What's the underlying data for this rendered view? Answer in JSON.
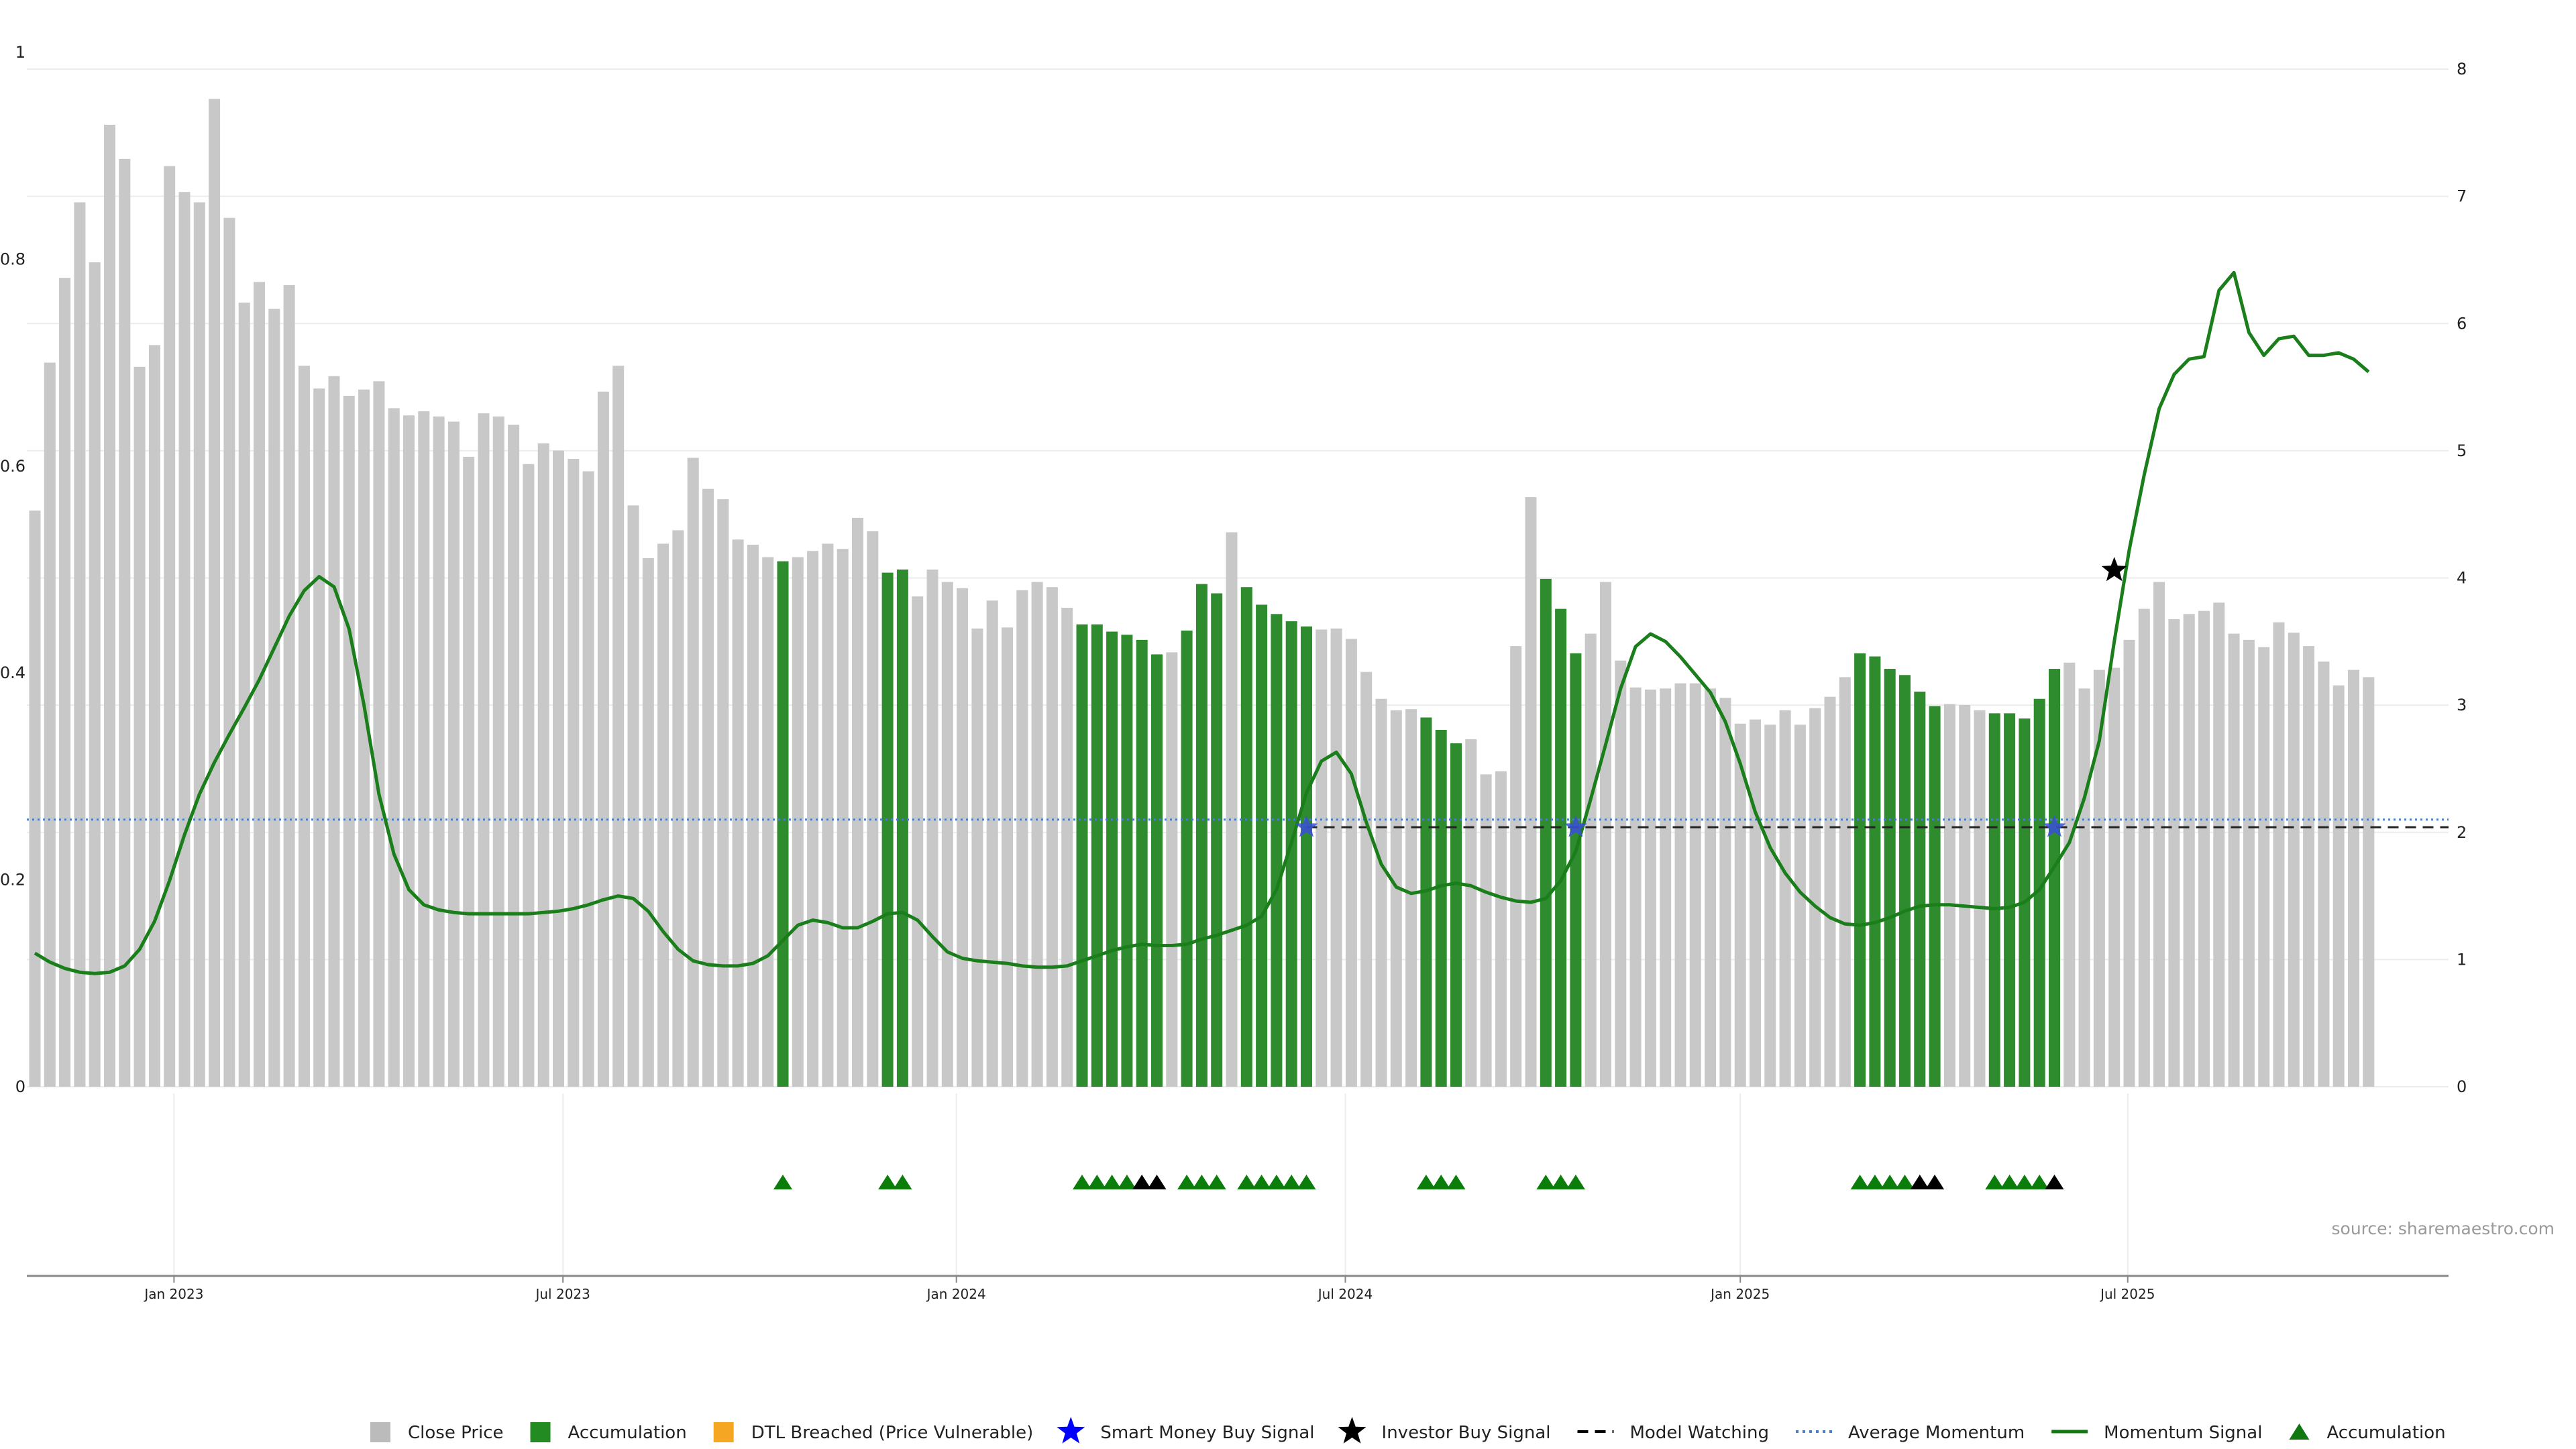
{
  "source": "source: sharemaestro.com",
  "chart_data": {
    "type": "bar",
    "y_left": {
      "ticks": [
        "0",
        "0.2",
        "0.4",
        "0.6",
        "0.8",
        "1"
      ],
      "range": [
        0,
        1
      ]
    },
    "y_right": {
      "ticks": [
        "0",
        "1",
        "2",
        "3",
        "4",
        "5",
        "6",
        "7",
        "8"
      ],
      "range": [
        0,
        8
      ]
    },
    "x_ticks": [
      {
        "label": "Jan 2023",
        "week": 9.3
      },
      {
        "label": "Jul 2023",
        "week": 35.3
      },
      {
        "label": "Jan 2024",
        "week": 61.6
      },
      {
        "label": "Jul 2024",
        "week": 87.6
      },
      {
        "label": "Jan 2025",
        "week": 114
      },
      {
        "label": "Jul 2025",
        "week": 139.9
      }
    ],
    "weeks": 157,
    "close_price": [
      0.557,
      0.7,
      0.782,
      0.855,
      0.797,
      0.93,
      0.897,
      0.696,
      0.717,
      0.89,
      0.865,
      0.855,
      0.955,
      0.84,
      0.758,
      0.778,
      0.752,
      0.775,
      0.697,
      0.675,
      0.687,
      0.668,
      0.674,
      0.682,
      0.656,
      0.649,
      0.653,
      0.648,
      0.643,
      0.609,
      0.651,
      0.648,
      0.64,
      0.602,
      0.622,
      0.615,
      0.607,
      0.595,
      0.672,
      0.697,
      0.562,
      0.511,
      0.525,
      0.538,
      0.608,
      0.578,
      0.568,
      0.529,
      0.524,
      0.512,
      0.508,
      0.512,
      0.518,
      0.525,
      0.52,
      0.55,
      0.537,
      0.497,
      0.5,
      0.474,
      0.5,
      0.488,
      0.482,
      0.443,
      0.47,
      0.444,
      0.48,
      0.488,
      0.483,
      0.463,
      0.447,
      0.447,
      0.44,
      0.437,
      0.432,
      0.418,
      0.42,
      0.441,
      0.486,
      0.477,
      0.536,
      0.483,
      0.466,
      0.457,
      0.45,
      0.445,
      0.442,
      0.443,
      0.433,
      0.401,
      0.375,
      0.364,
      0.365,
      0.357,
      0.345,
      0.332,
      0.336,
      0.302,
      0.305,
      0.426,
      0.57,
      0.491,
      0.462,
      0.419,
      0.438,
      0.488,
      0.412,
      0.386,
      0.384,
      0.385,
      0.39,
      0.39,
      0.385,
      0.376,
      0.351,
      0.355,
      0.35,
      0.364,
      0.35,
      0.366,
      0.377,
      0.396,
      0.419,
      0.416,
      0.404,
      0.398,
      0.382,
      0.368,
      0.37,
      0.369,
      0.364,
      0.361,
      0.361,
      0.356,
      0.375,
      0.404,
      0.41,
      0.385,
      0.403,
      0.405,
      0.432,
      0.462,
      0.488,
      0.452,
      0.457,
      0.46,
      0.468,
      0.438,
      0.432,
      0.425,
      0.449,
      0.439,
      0.426,
      0.411,
      0.388,
      0.403,
      0.396
    ],
    "accumulation_weeks": [
      50,
      57,
      58,
      70,
      71,
      72,
      73,
      74,
      75,
      77,
      78,
      79,
      81,
      82,
      83,
      84,
      85,
      93,
      94,
      95,
      101,
      102,
      103,
      122,
      123,
      124,
      125,
      126,
      127,
      131,
      132,
      133,
      134,
      135
    ],
    "momentum_signal": [
      [
        0,
        1.05
      ],
      [
        1,
        0.98
      ],
      [
        2,
        0.93
      ],
      [
        3,
        0.9
      ],
      [
        4,
        0.89
      ],
      [
        5,
        0.9
      ],
      [
        6,
        0.95
      ],
      [
        7,
        1.08
      ],
      [
        8,
        1.3
      ],
      [
        9,
        1.62
      ],
      [
        10,
        1.98
      ],
      [
        11,
        2.3
      ],
      [
        12,
        2.55
      ],
      [
        13,
        2.77
      ],
      [
        14,
        2.98
      ],
      [
        15,
        3.2
      ],
      [
        16,
        3.45
      ],
      [
        17,
        3.7
      ],
      [
        18,
        3.9
      ],
      [
        19,
        4.01
      ],
      [
        20,
        3.93
      ],
      [
        21,
        3.6
      ],
      [
        22,
        3.0
      ],
      [
        23,
        2.3
      ],
      [
        24,
        1.83
      ],
      [
        25,
        1.55
      ],
      [
        26,
        1.43
      ],
      [
        27,
        1.39
      ],
      [
        28,
        1.37
      ],
      [
        29,
        1.36
      ],
      [
        30,
        1.36
      ],
      [
        31,
        1.36
      ],
      [
        32,
        1.36
      ],
      [
        33,
        1.36
      ],
      [
        34,
        1.37
      ],
      [
        35,
        1.38
      ],
      [
        36,
        1.4
      ],
      [
        37,
        1.43
      ],
      [
        38,
        1.47
      ],
      [
        39,
        1.5
      ],
      [
        40,
        1.48
      ],
      [
        41,
        1.38
      ],
      [
        42,
        1.22
      ],
      [
        43,
        1.08
      ],
      [
        44,
        0.99
      ],
      [
        45,
        0.96
      ],
      [
        46,
        0.95
      ],
      [
        47,
        0.95
      ],
      [
        48,
        0.97
      ],
      [
        49,
        1.03
      ],
      [
        50,
        1.15
      ],
      [
        51,
        1.27
      ],
      [
        52,
        1.31
      ],
      [
        53,
        1.29
      ],
      [
        54,
        1.25
      ],
      [
        55,
        1.25
      ],
      [
        56,
        1.3
      ],
      [
        57,
        1.36
      ],
      [
        58,
        1.37
      ],
      [
        59,
        1.31
      ],
      [
        60,
        1.18
      ],
      [
        61,
        1.06
      ],
      [
        62,
        1.01
      ],
      [
        63,
        0.99
      ],
      [
        64,
        0.98
      ],
      [
        65,
        0.97
      ],
      [
        66,
        0.95
      ],
      [
        67,
        0.94
      ],
      [
        68,
        0.94
      ],
      [
        69,
        0.95
      ],
      [
        70,
        0.99
      ],
      [
        71,
        1.03
      ],
      [
        72,
        1.07
      ],
      [
        73,
        1.1
      ],
      [
        74,
        1.12
      ],
      [
        75,
        1.11
      ],
      [
        76,
        1.11
      ],
      [
        77,
        1.12
      ],
      [
        78,
        1.16
      ],
      [
        79,
        1.19
      ],
      [
        80,
        1.23
      ],
      [
        81,
        1.27
      ],
      [
        82,
        1.34
      ],
      [
        83,
        1.55
      ],
      [
        84,
        1.92
      ],
      [
        85,
        2.31
      ],
      [
        86,
        2.56
      ],
      [
        87,
        2.63
      ],
      [
        88,
        2.46
      ],
      [
        89,
        2.08
      ],
      [
        90,
        1.75
      ],
      [
        91,
        1.57
      ],
      [
        92,
        1.52
      ],
      [
        93,
        1.54
      ],
      [
        94,
        1.58
      ],
      [
        95,
        1.6
      ],
      [
        96,
        1.58
      ],
      [
        97,
        1.53
      ],
      [
        98,
        1.49
      ],
      [
        99,
        1.46
      ],
      [
        100,
        1.45
      ],
      [
        101,
        1.48
      ],
      [
        102,
        1.62
      ],
      [
        103,
        1.85
      ],
      [
        104,
        2.26
      ],
      [
        105,
        2.69
      ],
      [
        106,
        3.13
      ],
      [
        107,
        3.46
      ],
      [
        108,
        3.56
      ],
      [
        109,
        3.5
      ],
      [
        110,
        3.38
      ],
      [
        111,
        3.24
      ],
      [
        112,
        3.1
      ],
      [
        113,
        2.87
      ],
      [
        114,
        2.54
      ],
      [
        115,
        2.16
      ],
      [
        116,
        1.88
      ],
      [
        117,
        1.68
      ],
      [
        118,
        1.53
      ],
      [
        119,
        1.42
      ],
      [
        120,
        1.33
      ],
      [
        121,
        1.28
      ],
      [
        122,
        1.27
      ],
      [
        123,
        1.29
      ],
      [
        124,
        1.33
      ],
      [
        125,
        1.38
      ],
      [
        126,
        1.42
      ],
      [
        127,
        1.43
      ],
      [
        128,
        1.43
      ],
      [
        129,
        1.42
      ],
      [
        130,
        1.41
      ],
      [
        131,
        1.4
      ],
      [
        132,
        1.41
      ],
      [
        133,
        1.45
      ],
      [
        134,
        1.55
      ],
      [
        135,
        1.73
      ],
      [
        136,
        1.92
      ],
      [
        137,
        2.27
      ],
      [
        138,
        2.72
      ],
      [
        139,
        3.5
      ],
      [
        140,
        4.22
      ],
      [
        141,
        4.81
      ],
      [
        142,
        5.33
      ],
      [
        143,
        5.6
      ],
      [
        144,
        5.72
      ],
      [
        145,
        5.74
      ],
      [
        146,
        6.26
      ],
      [
        147,
        6.4
      ],
      [
        148,
        5.93
      ],
      [
        149,
        5.75
      ],
      [
        150,
        5.88
      ],
      [
        151,
        5.9
      ],
      [
        152,
        5.75
      ],
      [
        153,
        5.75
      ],
      [
        154,
        5.77
      ],
      [
        155,
        5.72
      ],
      [
        156,
        5.62
      ]
    ],
    "average_momentum": 2.1,
    "model_watching": {
      "level": 2.04,
      "from_week": 85
    },
    "smart_money_buy_signals": [
      [
        85,
        2.04
      ],
      [
        103,
        2.04
      ],
      [
        135,
        2.04
      ]
    ],
    "investor_buy_signals": [
      [
        139,
        4.06
      ]
    ],
    "accumulation_markers": [
      50,
      57,
      58,
      70,
      71,
      72,
      73,
      74,
      75,
      77,
      78,
      79,
      81,
      82,
      83,
      84,
      85,
      93,
      94,
      95,
      101,
      102,
      103,
      122,
      123,
      124,
      125,
      126,
      127,
      131,
      132,
      133,
      134,
      135
    ],
    "black_markers": [
      74,
      75,
      126,
      127,
      135
    ],
    "legend": [
      {
        "label": "Close Price",
        "symbol": "square",
        "color": "#bbbbbb"
      },
      {
        "label": "Accumulation",
        "symbol": "square",
        "color": "#228b22"
      },
      {
        "label": "DTL Breached (Price Vulnerable)",
        "symbol": "square",
        "color": "#f5a623"
      },
      {
        "label": "Smart Money Buy Signal",
        "symbol": "star",
        "color": "#0000ff"
      },
      {
        "label": "Investor Buy Signal",
        "symbol": "star",
        "color": "#000000"
      },
      {
        "label": "Model Watching",
        "symbol": "dash",
        "color": "#000000"
      },
      {
        "label": "Average Momentum",
        "symbol": "dot",
        "color": "#4a7fc1"
      },
      {
        "label": "Momentum Signal",
        "symbol": "line",
        "color": "#117711"
      },
      {
        "label": "Accumulation",
        "symbol": "triangle",
        "color": "#117711"
      }
    ]
  }
}
